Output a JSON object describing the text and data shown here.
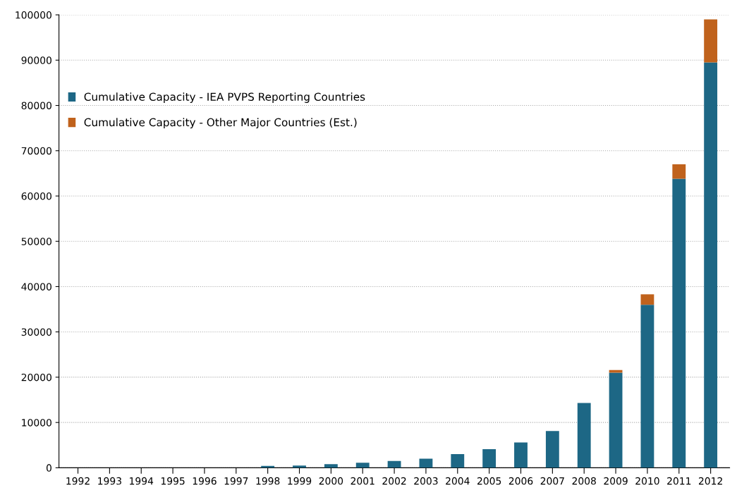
{
  "chart_data": {
    "type": "bar",
    "stacked": true,
    "categories": [
      "1992",
      "1993",
      "1994",
      "1995",
      "1996",
      "1997",
      "1998",
      "1999",
      "2000",
      "2001",
      "2002",
      "2003",
      "2004",
      "2005",
      "2006",
      "2007",
      "2008",
      "2009",
      "2010",
      "2011",
      "2012"
    ],
    "series": [
      {
        "name": "Cumulative Capacity - IEA PVPS Reporting Countries",
        "color": "#1d6785",
        "values": [
          null,
          null,
          null,
          null,
          null,
          null,
          400,
          500,
          800,
          1100,
          1500,
          2000,
          3000,
          4100,
          5600,
          8100,
          14300,
          21000,
          36000,
          63800,
          89500
        ]
      },
      {
        "name": "Cumulative Capacity - Other Major Countries (Est.)",
        "color": "#c0621c",
        "values": [
          0,
          0,
          0,
          0,
          0,
          0,
          0,
          0,
          0,
          0,
          0,
          0,
          0,
          0,
          0,
          0,
          0,
          600,
          2300,
          3200,
          9500
        ]
      }
    ],
    "ylim": [
      0,
      100000
    ],
    "yticks": [
      0,
      10000,
      20000,
      30000,
      40000,
      50000,
      60000,
      70000,
      80000,
      90000,
      100000
    ],
    "grid": "y",
    "legend": "top left"
  }
}
